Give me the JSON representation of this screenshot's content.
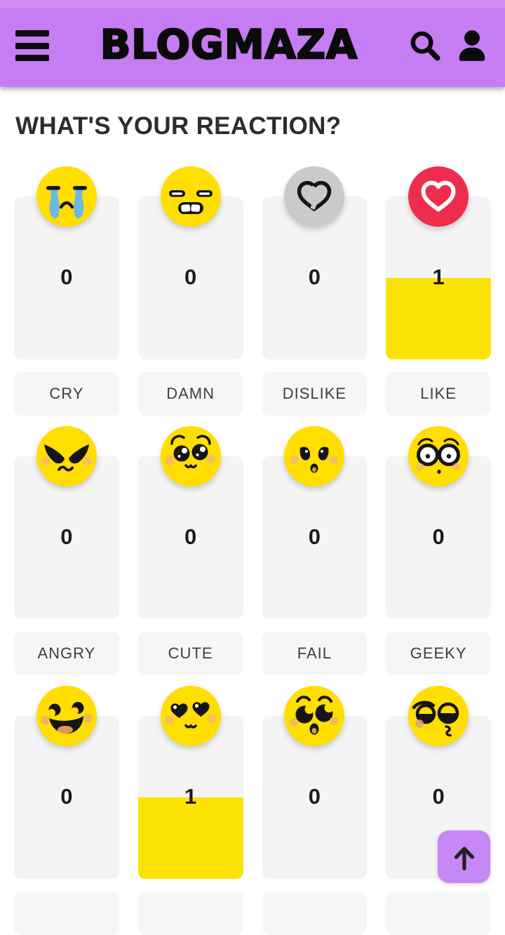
{
  "header": {
    "logo_text": "BLOGMAZA",
    "menu_icon": "hamburger-icon",
    "search_icon": "search-icon",
    "account_icon": "user-icon"
  },
  "main": {
    "section_title": "WHAT'S YOUR REACTION?",
    "reactions": [
      {
        "icon": "cry-emoji",
        "label": "CRY",
        "count": 0
      },
      {
        "icon": "damn-emoji",
        "label": "DAMN",
        "count": 0
      },
      {
        "icon": "dislike-emoji",
        "label": "DISLIKE",
        "count": 0
      },
      {
        "icon": "like-emoji",
        "label": "LIKE",
        "count": 1
      },
      {
        "icon": "angry-emoji",
        "label": "ANGRY",
        "count": 0
      },
      {
        "icon": "cute-emoji",
        "label": "CUTE",
        "count": 0
      },
      {
        "icon": "fail-emoji",
        "label": "FAIL",
        "count": 0
      },
      {
        "icon": "geeky-emoji",
        "label": "GEEKY",
        "count": 0
      },
      {
        "icon": "happy-emoji",
        "label": "",
        "count": 0
      },
      {
        "icon": "love-emoji",
        "label": "",
        "count": 1
      },
      {
        "icon": "omg-emoji",
        "label": "",
        "count": 0
      },
      {
        "icon": "smug-emoji",
        "label": "",
        "count": 0
      }
    ]
  },
  "scroll_top_button": {
    "icon": "arrow-up-icon"
  },
  "colors": {
    "header_purple": "#C67CF2",
    "button_purple": "#C787F5",
    "bar_yellow": "#FBE306",
    "emoji_yellow": "#FFDE00",
    "like_red": "#EE2D4E",
    "dislike_gray": "#CACACA",
    "track_gray": "#F4F4F5",
    "label_gray": "#F6F6F7",
    "text_dark": "#2D2D2D"
  }
}
